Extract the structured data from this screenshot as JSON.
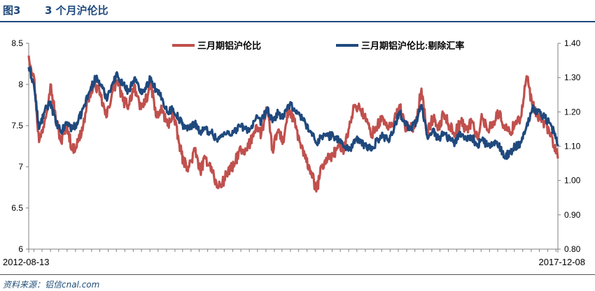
{
  "figure": {
    "label": "图3",
    "title": "3 个月沪伦比",
    "source": "资料来源：铝信cnal.com"
  },
  "chart_data": {
    "type": "line",
    "x_start": "2012-08-13",
    "x_end": "2017-12-08",
    "x_tick_labels": [
      "2012-08-13",
      "2017-12-08"
    ],
    "y_left": {
      "range": [
        6,
        8.5
      ],
      "ticks": [
        6,
        6.5,
        7,
        7.5,
        8,
        8.5
      ],
      "tick_labels": [
        "6",
        "6.5",
        "7",
        "7.5",
        "8",
        "8.5"
      ]
    },
    "y_right": {
      "range": [
        0.8,
        1.4
      ],
      "ticks": [
        0.8,
        0.9,
        1.0,
        1.1,
        1.2,
        1.3,
        1.4
      ],
      "tick_labels": [
        "0.80",
        "0.90",
        "1.00",
        "1.10",
        "1.20",
        "1.30",
        "1.40"
      ]
    },
    "grid": false,
    "legend_position": "top-center",
    "series": [
      {
        "name": "三月期铝沪伦比",
        "axis": "left",
        "color": "#c0504d",
        "x": [
          "2012-08-13",
          "2012-09-01",
          "2012-09-20",
          "2012-10-10",
          "2012-11-01",
          "2012-11-20",
          "2012-12-10",
          "2013-01-01",
          "2013-01-20",
          "2013-02-10",
          "2013-03-01",
          "2013-03-25",
          "2013-04-15",
          "2013-05-05",
          "2013-05-25",
          "2013-06-15",
          "2013-07-05",
          "2013-07-25",
          "2013-08-15",
          "2013-09-05",
          "2013-09-25",
          "2013-10-15",
          "2013-11-05",
          "2013-11-25",
          "2013-12-15",
          "2014-01-05",
          "2014-01-25",
          "2014-02-15",
          "2014-03-05",
          "2014-03-25",
          "2014-04-15",
          "2014-05-05",
          "2014-05-25",
          "2014-06-15",
          "2014-07-05",
          "2014-07-25",
          "2014-08-15",
          "2014-09-05",
          "2014-09-25",
          "2014-10-15",
          "2014-11-05",
          "2014-11-25",
          "2014-12-15",
          "2015-01-05",
          "2015-01-25",
          "2015-02-15",
          "2015-03-05",
          "2015-03-25",
          "2015-04-15",
          "2015-05-05",
          "2015-05-25",
          "2015-06-15",
          "2015-07-05",
          "2015-07-25",
          "2015-08-15",
          "2015-09-05",
          "2015-09-25",
          "2015-10-15",
          "2015-11-05",
          "2015-11-25",
          "2015-12-15",
          "2016-01-05",
          "2016-01-25",
          "2016-02-15",
          "2016-03-05",
          "2016-03-25",
          "2016-04-15",
          "2016-05-05",
          "2016-05-25",
          "2016-06-15",
          "2016-07-05",
          "2016-07-25",
          "2016-08-15",
          "2016-09-05",
          "2016-09-25",
          "2016-10-15",
          "2016-11-05",
          "2016-11-25",
          "2016-12-15",
          "2017-01-05",
          "2017-01-25",
          "2017-02-15",
          "2017-03-05",
          "2017-03-25",
          "2017-04-15",
          "2017-05-05",
          "2017-05-25",
          "2017-06-15",
          "2017-07-05",
          "2017-07-25",
          "2017-08-15",
          "2017-09-05",
          "2017-09-25",
          "2017-10-15",
          "2017-11-05",
          "2017-11-25",
          "2017-12-08"
        ],
        "values": [
          8.35,
          8.1,
          7.3,
          7.55,
          8.0,
          7.6,
          7.3,
          7.5,
          7.2,
          7.3,
          7.5,
          7.9,
          8.0,
          7.85,
          7.6,
          7.9,
          8.05,
          7.8,
          7.75,
          8.0,
          7.7,
          7.8,
          8.0,
          7.6,
          7.7,
          7.5,
          7.65,
          7.3,
          7.05,
          7.0,
          7.2,
          6.95,
          7.1,
          7.0,
          6.75,
          6.8,
          6.95,
          7.0,
          7.2,
          7.15,
          7.3,
          7.5,
          7.4,
          7.7,
          7.2,
          7.45,
          7.3,
          7.7,
          7.55,
          7.3,
          7.1,
          6.95,
          6.7,
          7.0,
          7.1,
          7.15,
          7.25,
          7.2,
          7.55,
          7.75,
          7.7,
          7.55,
          7.4,
          7.5,
          7.6,
          7.45,
          7.55,
          7.75,
          7.5,
          7.45,
          7.55,
          7.95,
          7.4,
          7.6,
          7.45,
          7.65,
          7.5,
          7.4,
          7.55,
          7.45,
          7.55,
          7.35,
          7.6,
          7.45,
          7.55,
          7.65,
          7.5,
          7.4,
          7.55,
          7.6,
          8.1,
          7.75,
          7.6,
          7.55,
          7.45,
          7.25,
          7.1
        ]
      },
      {
        "name": "三月期铝沪伦比:剔除汇率",
        "axis": "right",
        "color": "#1f497d",
        "x": [
          "2012-08-13",
          "2012-09-01",
          "2012-09-20",
          "2012-10-10",
          "2012-11-01",
          "2012-11-20",
          "2012-12-10",
          "2013-01-01",
          "2013-01-20",
          "2013-02-10",
          "2013-03-01",
          "2013-03-25",
          "2013-04-15",
          "2013-05-05",
          "2013-05-25",
          "2013-06-15",
          "2013-07-05",
          "2013-07-25",
          "2013-08-15",
          "2013-09-05",
          "2013-09-25",
          "2013-10-15",
          "2013-11-05",
          "2013-11-25",
          "2013-12-15",
          "2014-01-05",
          "2014-01-25",
          "2014-02-15",
          "2014-03-05",
          "2014-03-25",
          "2014-04-15",
          "2014-05-05",
          "2014-05-25",
          "2014-06-15",
          "2014-07-05",
          "2014-07-25",
          "2014-08-15",
          "2014-09-05",
          "2014-09-25",
          "2014-10-15",
          "2014-11-05",
          "2014-11-25",
          "2014-12-15",
          "2015-01-05",
          "2015-01-25",
          "2015-02-15",
          "2015-03-05",
          "2015-03-25",
          "2015-04-15",
          "2015-05-05",
          "2015-05-25",
          "2015-06-15",
          "2015-07-05",
          "2015-07-25",
          "2015-08-15",
          "2015-09-05",
          "2015-09-25",
          "2015-10-15",
          "2015-11-05",
          "2015-11-25",
          "2015-12-15",
          "2016-01-05",
          "2016-01-25",
          "2016-02-15",
          "2016-03-05",
          "2016-03-25",
          "2016-04-15",
          "2016-05-05",
          "2016-05-25",
          "2016-06-15",
          "2016-07-05",
          "2016-07-25",
          "2016-08-15",
          "2016-09-05",
          "2016-09-25",
          "2016-10-15",
          "2016-11-05",
          "2016-11-25",
          "2016-12-15",
          "2017-01-05",
          "2017-01-25",
          "2017-02-15",
          "2017-03-05",
          "2017-03-25",
          "2017-04-15",
          "2017-05-05",
          "2017-05-25",
          "2017-06-15",
          "2017-07-05",
          "2017-07-25",
          "2017-08-15",
          "2017-09-05",
          "2017-09-25",
          "2017-10-15",
          "2017-11-05",
          "2017-11-25",
          "2017-12-08"
        ],
        "values": [
          1.33,
          1.28,
          1.15,
          1.2,
          1.23,
          1.17,
          1.14,
          1.17,
          1.15,
          1.17,
          1.21,
          1.26,
          1.3,
          1.28,
          1.24,
          1.28,
          1.31,
          1.28,
          1.26,
          1.3,
          1.26,
          1.27,
          1.3,
          1.26,
          1.24,
          1.2,
          1.21,
          1.18,
          1.16,
          1.15,
          1.17,
          1.14,
          1.15,
          1.14,
          1.12,
          1.13,
          1.14,
          1.14,
          1.16,
          1.15,
          1.15,
          1.18,
          1.17,
          1.21,
          1.17,
          1.2,
          1.18,
          1.22,
          1.21,
          1.19,
          1.17,
          1.14,
          1.11,
          1.13,
          1.13,
          1.13,
          1.12,
          1.1,
          1.09,
          1.12,
          1.11,
          1.1,
          1.09,
          1.12,
          1.13,
          1.12,
          1.15,
          1.2,
          1.17,
          1.15,
          1.17,
          1.22,
          1.13,
          1.15,
          1.12,
          1.14,
          1.12,
          1.11,
          1.14,
          1.12,
          1.13,
          1.1,
          1.12,
          1.1,
          1.11,
          1.1,
          1.07,
          1.08,
          1.1,
          1.11,
          1.16,
          1.21,
          1.2,
          1.19,
          1.17,
          1.14,
          1.1
        ]
      }
    ]
  }
}
